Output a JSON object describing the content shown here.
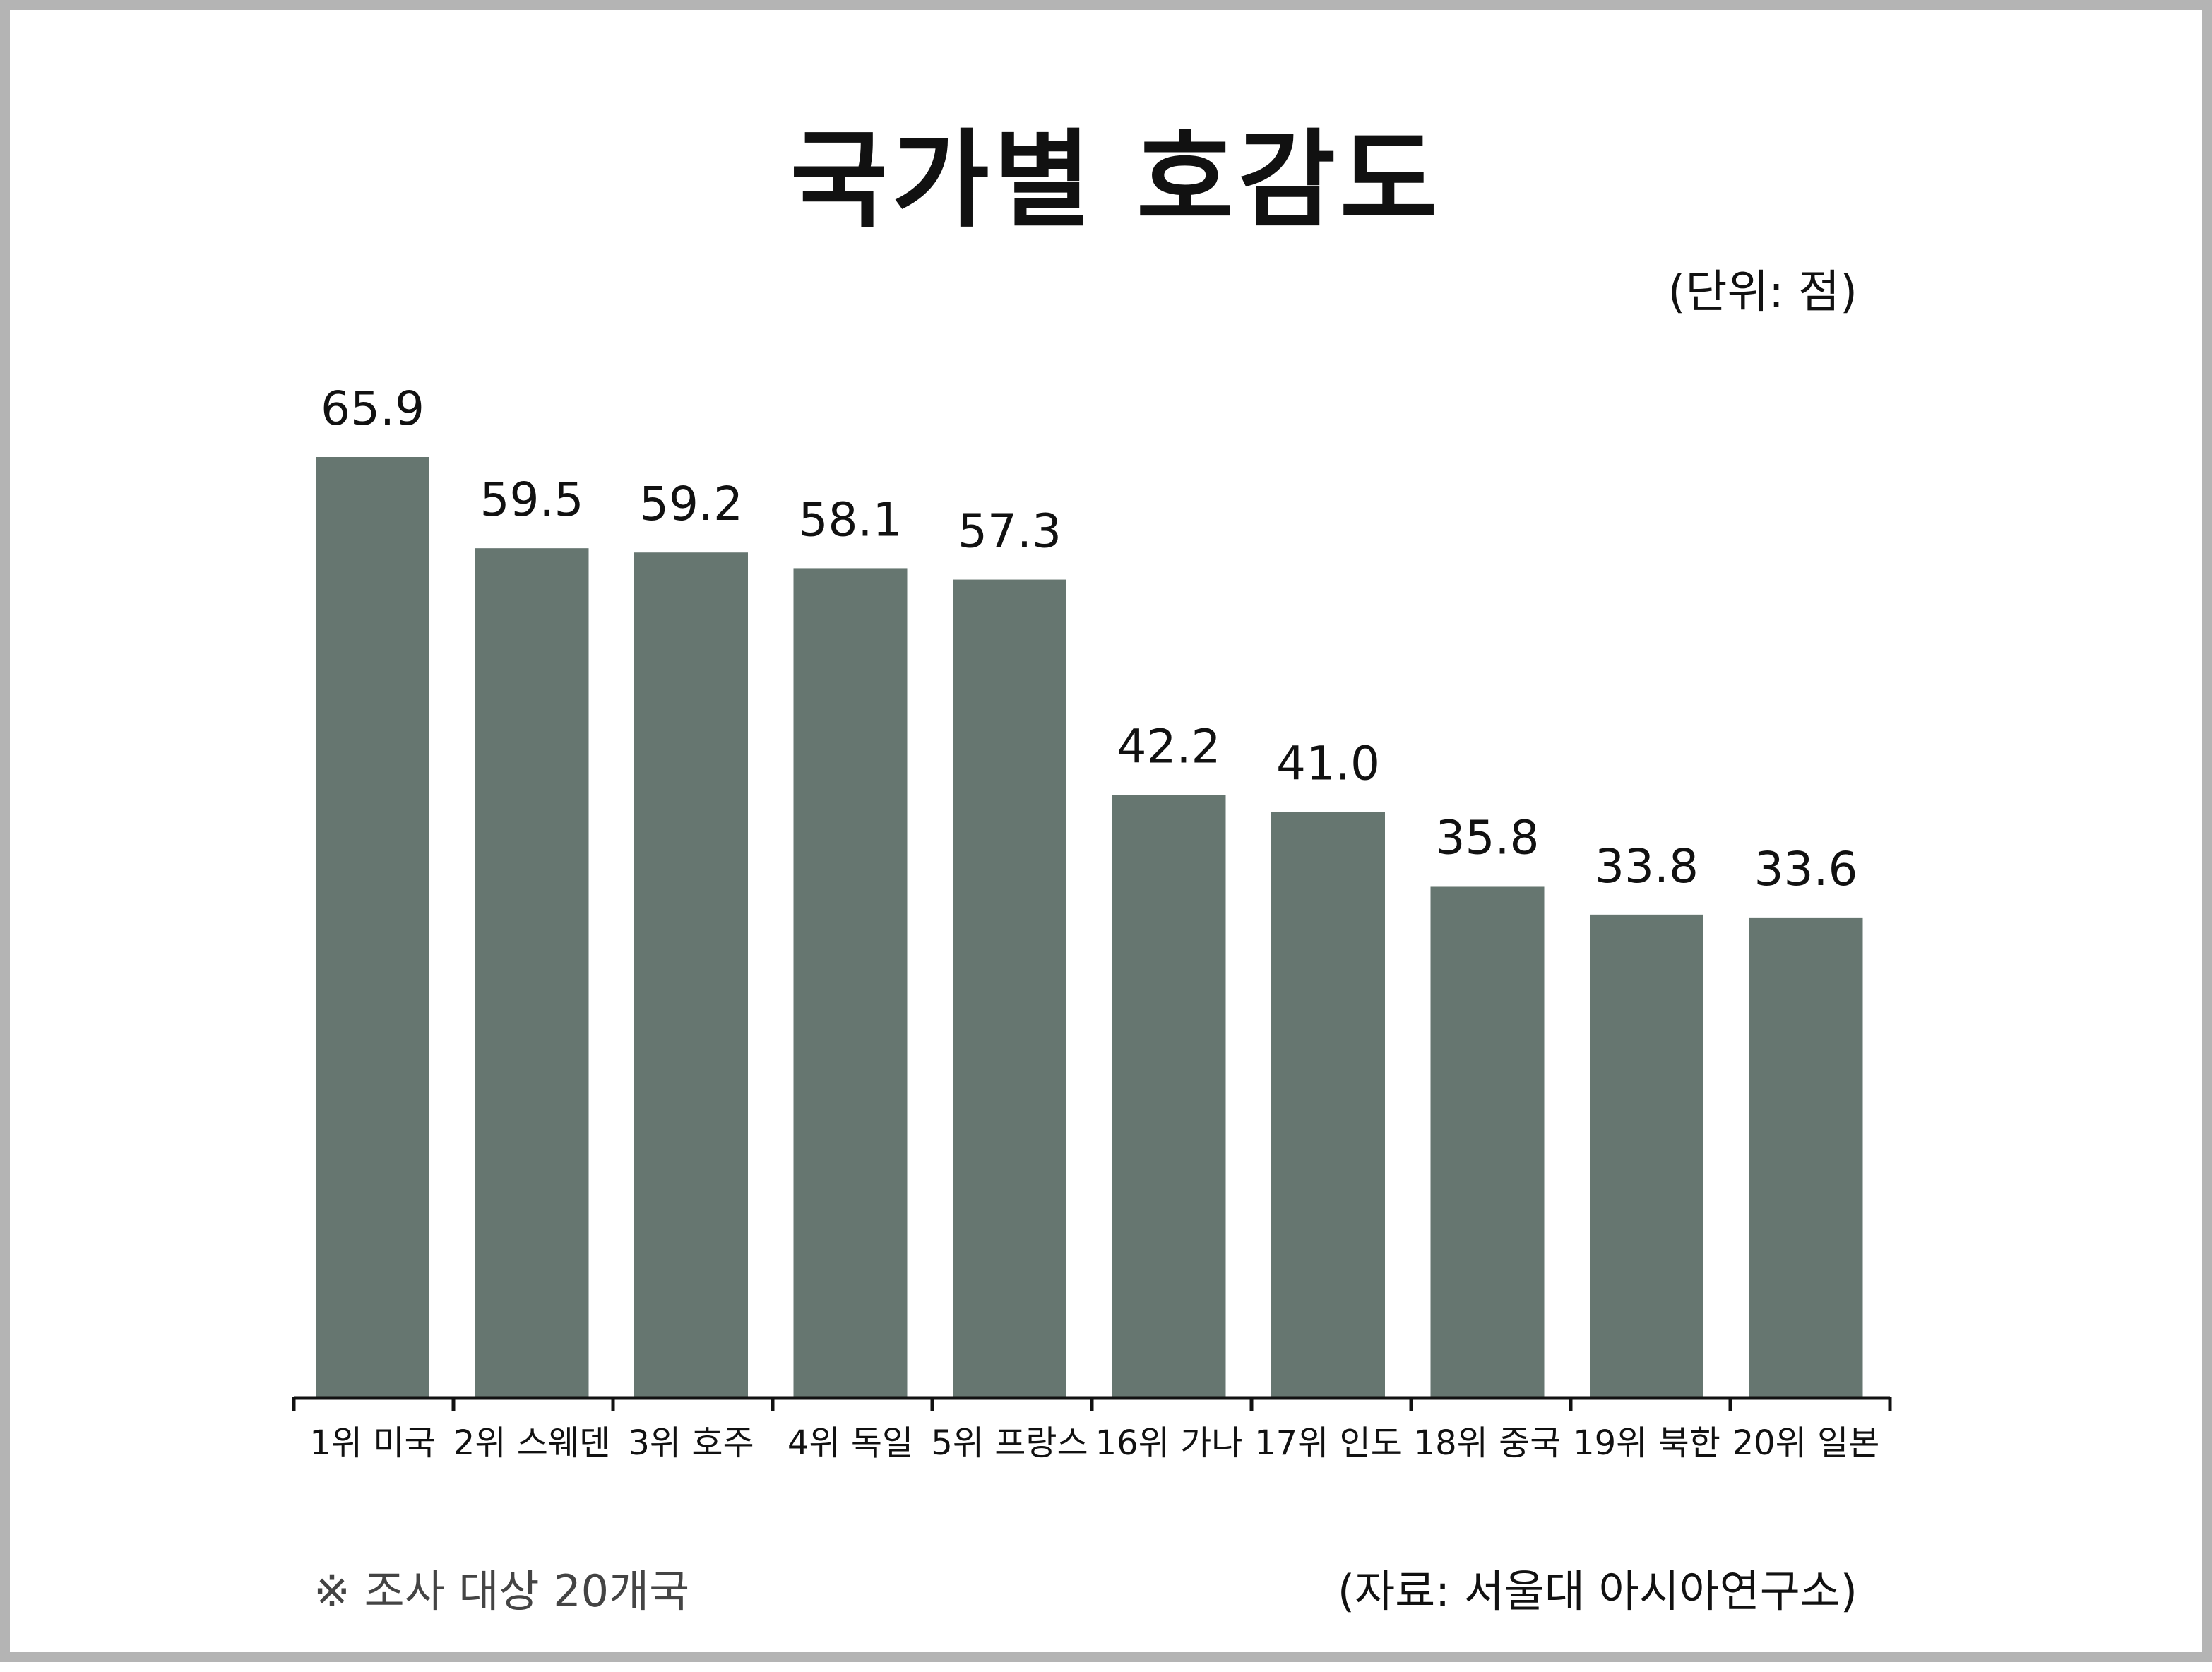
{
  "header": {
    "title": "국가별 호감도",
    "unit": "(단위: 점)"
  },
  "footer": {
    "note": "※ 조사 대상 20개국",
    "source": "(자료: 서울대 아시아연구소)"
  },
  "colors": {
    "bar": "#667670",
    "axis": "#111111",
    "text": "#111111"
  },
  "chart_data": {
    "type": "bar",
    "title": "국가별 호감도",
    "xlabel": "",
    "ylabel": "",
    "unit": "(단위: 점)",
    "categories": [
      "1위 미국",
      "2위 스웨덴",
      "3위 호주",
      "4위 독일",
      "5위 프랑스",
      "16위 가나",
      "17위 인도",
      "18위 중국",
      "19위 북한",
      "20위 일본"
    ],
    "values": [
      65.9,
      59.5,
      59.2,
      58.1,
      57.3,
      42.2,
      41.0,
      35.8,
      33.8,
      33.6
    ],
    "value_labels": [
      "65.9",
      "59.5",
      "59.2",
      "58.1",
      "57.3",
      "42.2",
      "41.0",
      "35.8",
      "33.8",
      "33.6"
    ],
    "ylim": [
      0,
      65.9
    ],
    "grid": false,
    "legend": "none"
  }
}
